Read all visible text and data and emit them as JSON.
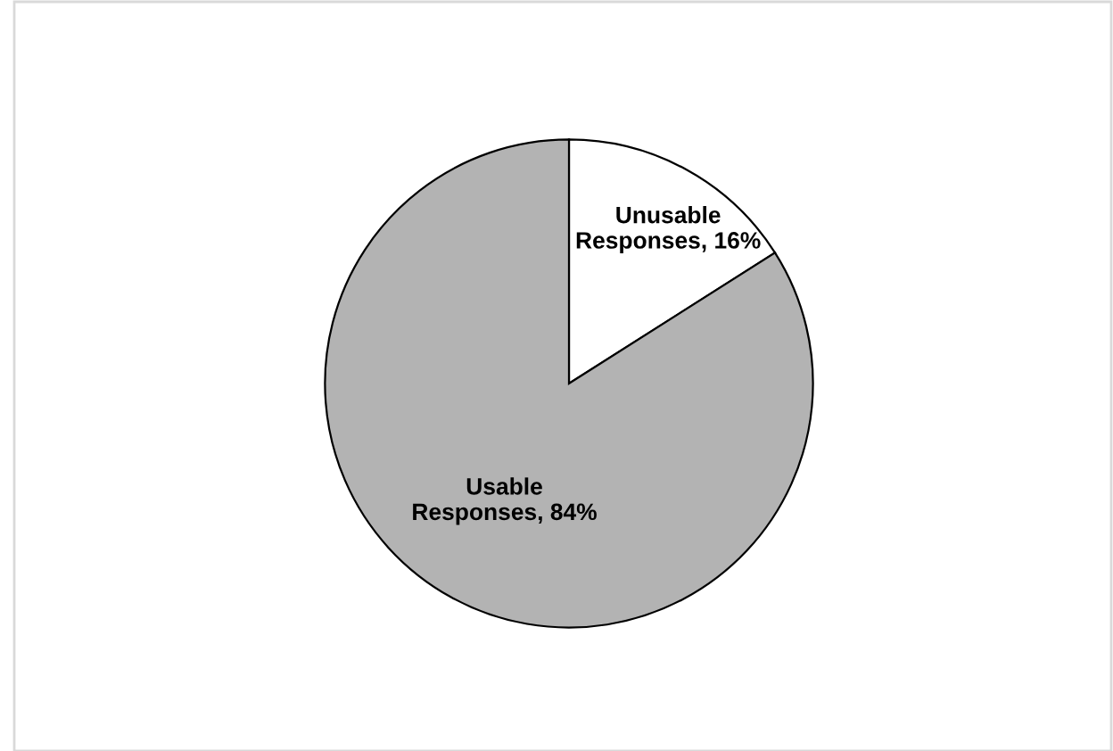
{
  "chart_data": {
    "type": "pie",
    "categories": [
      "Unusable Responses",
      "Usable Responses"
    ],
    "values": [
      16,
      84
    ],
    "colors": [
      "#ffffff",
      "#b3b3b3"
    ],
    "value_labels": [
      "16%",
      "84%"
    ],
    "legend": false
  }
}
